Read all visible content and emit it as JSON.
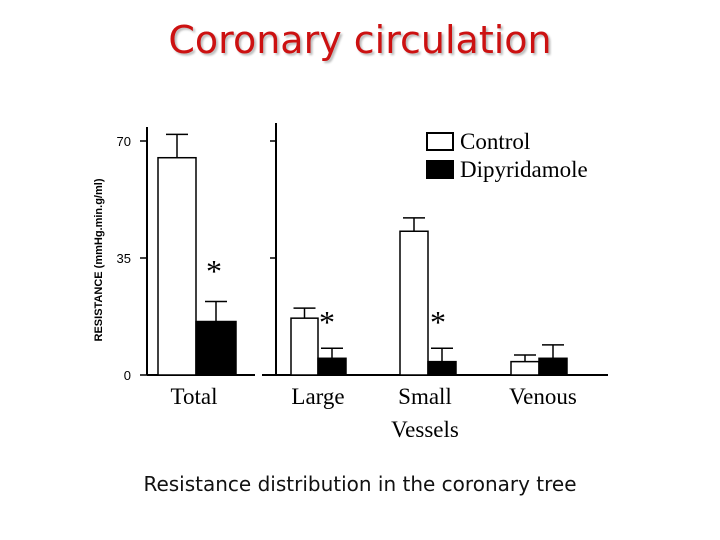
{
  "slide": {
    "title": "Coronary circulation",
    "caption": "Resistance distribution in the coronary tree"
  },
  "colors": {
    "title": "#cc1111",
    "control": "#ffffff",
    "dipyridamole": "#000000"
  },
  "chart_data": {
    "type": "bar",
    "title": "",
    "ylabel": "RESISTANCE (mmHg.min.g/ml)",
    "xlabel": "Vessels",
    "ylim": [
      0,
      70
    ],
    "yticks": [
      "0",
      "35",
      "70"
    ],
    "categories": [
      "Total",
      "Large",
      "Small",
      "Venous"
    ],
    "series": [
      {
        "name": "Control",
        "color": "#ffffff",
        "values": [
          65,
          17,
          43,
          4
        ],
        "errors": [
          7,
          3,
          4,
          2
        ]
      },
      {
        "name": "Dipyridamole",
        "color": "#000000",
        "values": [
          16,
          5,
          4,
          5
        ],
        "errors": [
          6,
          3,
          4,
          4
        ]
      }
    ],
    "annotations": [
      "*",
      "*",
      "*"
    ],
    "legend": "top-right"
  }
}
